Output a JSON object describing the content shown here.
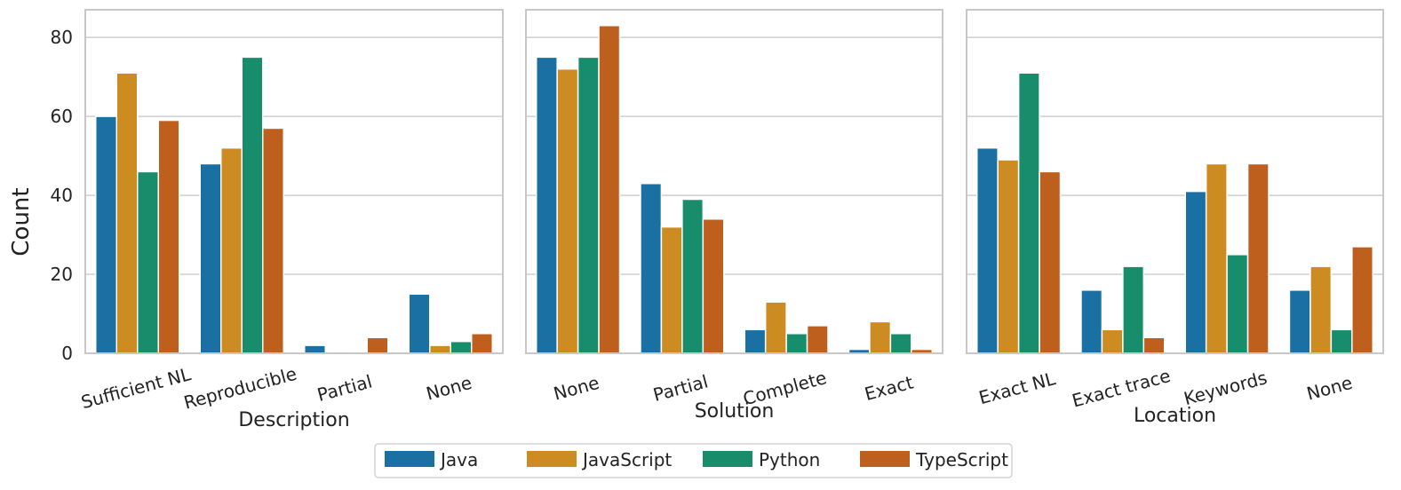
{
  "chart_data": [
    {
      "type": "bar",
      "ylabel": "Count",
      "xlabel": "Description",
      "categories": [
        "Sufficient NL",
        "Reproducible",
        "Partial",
        "None"
      ],
      "ylim": [
        0,
        87
      ],
      "yticks": [
        0,
        20,
        40,
        60,
        80
      ],
      "grid": true,
      "series": [
        {
          "name": "Java",
          "values": [
            60,
            48,
            2,
            15
          ]
        },
        {
          "name": "JavaScript",
          "values": [
            71,
            52,
            0,
            2
          ]
        },
        {
          "name": "Python",
          "values": [
            46,
            75,
            0,
            3
          ]
        },
        {
          "name": "TypeScript",
          "values": [
            59,
            57,
            4,
            5
          ]
        }
      ]
    },
    {
      "type": "bar",
      "xlabel": "Solution",
      "categories": [
        "None",
        "Partial",
        "Complete",
        "Exact"
      ],
      "ylim": [
        0,
        87
      ],
      "yticks": [
        0,
        20,
        40,
        60,
        80
      ],
      "grid": true,
      "series": [
        {
          "name": "Java",
          "values": [
            75,
            43,
            6,
            1
          ]
        },
        {
          "name": "JavaScript",
          "values": [
            72,
            32,
            13,
            8
          ]
        },
        {
          "name": "Python",
          "values": [
            75,
            39,
            5,
            5
          ]
        },
        {
          "name": "TypeScript",
          "values": [
            83,
            34,
            7,
            1
          ]
        }
      ]
    },
    {
      "type": "bar",
      "xlabel": "Location",
      "categories": [
        "Exact NL",
        "Exact trace",
        "Keywords",
        "None"
      ],
      "ylim": [
        0,
        87
      ],
      "yticks": [
        0,
        20,
        40,
        60,
        80
      ],
      "grid": true,
      "series": [
        {
          "name": "Java",
          "values": [
            52,
            16,
            41,
            16
          ]
        },
        {
          "name": "JavaScript",
          "values": [
            49,
            6,
            48,
            22
          ]
        },
        {
          "name": "Python",
          "values": [
            71,
            22,
            25,
            6
          ]
        },
        {
          "name": "TypeScript",
          "values": [
            46,
            4,
            48,
            27
          ]
        }
      ]
    }
  ],
  "legend": {
    "position": "bottom-center",
    "entries": [
      {
        "name": "Java",
        "color": "#1a6fa3"
      },
      {
        "name": "JavaScript",
        "color": "#cd8c22"
      },
      {
        "name": "Python",
        "color": "#178d6c"
      },
      {
        "name": "TypeScript",
        "color": "#bf5f1d"
      }
    ]
  },
  "colors": {
    "grid": "#cfcfcf",
    "frame": "#c8c8c8",
    "text": "#222222"
  }
}
